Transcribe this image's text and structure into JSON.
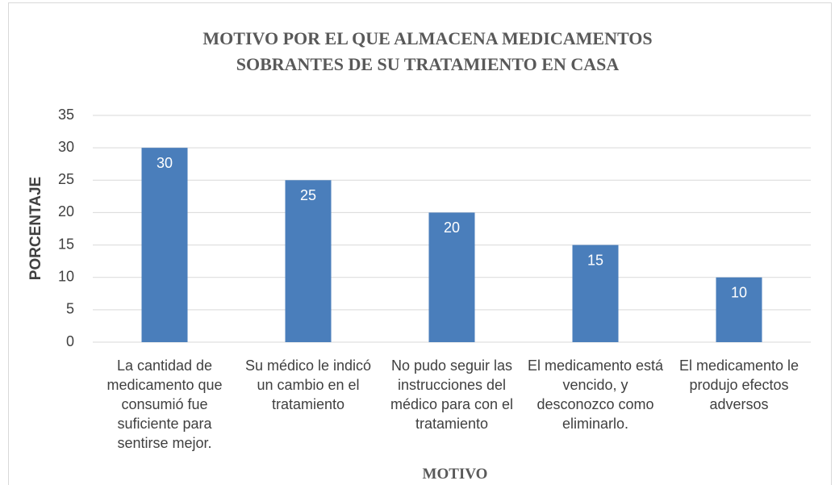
{
  "chart_data": {
    "type": "bar",
    "title": "MOTIVO POR EL QUE ALMACENA MEDICAMENTOS SOBRANTES DE SU TRATAMIENTO EN CASA",
    "x_label": "MOTIVO",
    "y_label": "PORCENTAJE",
    "categories": [
      "La cantidad de medicamento que consumió fue suficiente para sentirse mejor.",
      "Su médico le indicó un cambio en el tratamiento",
      "No pudo seguir las instrucciones del médico para con el tratamiento",
      "El medicamento está vencido, y desconozco como eliminarlo.",
      "El medicamento le produjo efectos adversos"
    ],
    "values": [
      30,
      25,
      20,
      15,
      10
    ],
    "color": "#4a7ebb",
    "ylim": [
      0,
      35
    ],
    "yticks": [
      0,
      5,
      10,
      15,
      20,
      25,
      30,
      35
    ],
    "grid": true
  }
}
